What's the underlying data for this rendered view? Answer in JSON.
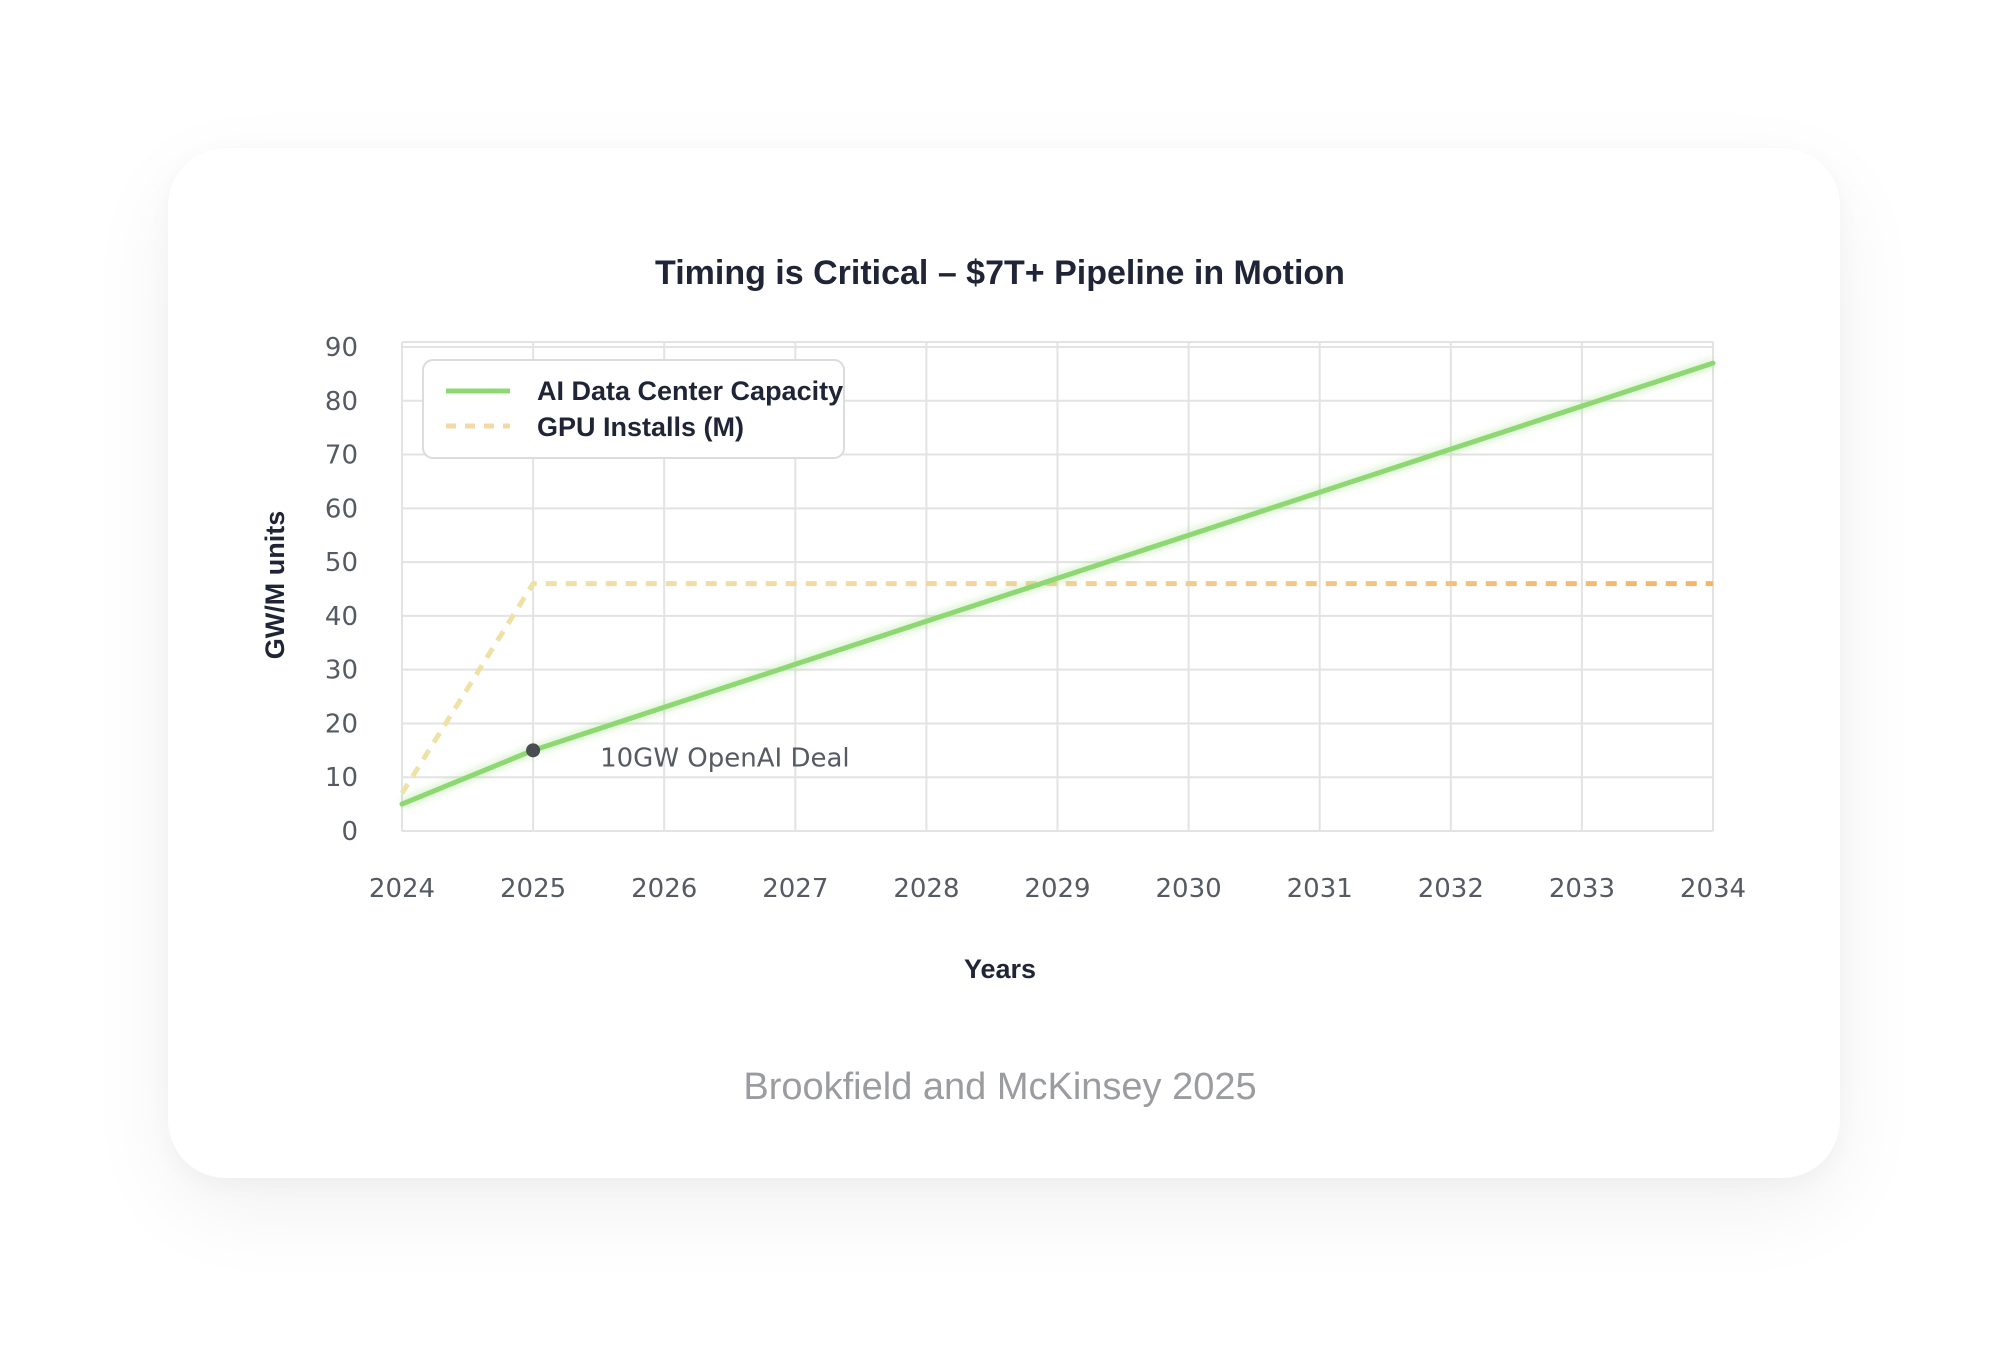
{
  "chart_data": {
    "type": "line",
    "title": "Timing is Critical – $7T+ Pipeline in Motion",
    "xlabel": "Years",
    "ylabel": "GW/M units",
    "x": [
      2024,
      2025,
      2026,
      2027,
      2028,
      2029,
      2030,
      2031,
      2032,
      2033,
      2034
    ],
    "x_ticks": [
      "2024",
      "2025",
      "2026",
      "2027",
      "2028",
      "2029",
      "2030",
      "2031",
      "2032",
      "2033",
      "2034"
    ],
    "y_ticks": [
      "0",
      "10",
      "20",
      "30",
      "40",
      "50",
      "60",
      "70",
      "80",
      "90"
    ],
    "ylim": [
      0,
      90
    ],
    "xlim": [
      2024,
      2034
    ],
    "grid": true,
    "legend_position": "top-left",
    "series": [
      {
        "name": "AI Data Center Capacity",
        "style": "solid",
        "color": "#8ed873",
        "values": [
          5,
          15,
          23,
          31,
          39,
          47,
          55,
          63,
          71,
          79,
          87
        ]
      },
      {
        "name": "GPU Installs (M)",
        "style": "dashed",
        "color": "#f2c27b",
        "values": [
          7,
          46,
          46,
          46,
          46,
          46,
          46,
          46,
          46,
          46,
          46
        ]
      }
    ],
    "annotations": [
      {
        "text": "10GW OpenAI Deal",
        "x": 2025,
        "y": 15
      }
    ]
  },
  "source": "Brookfield and McKinsey 2025"
}
